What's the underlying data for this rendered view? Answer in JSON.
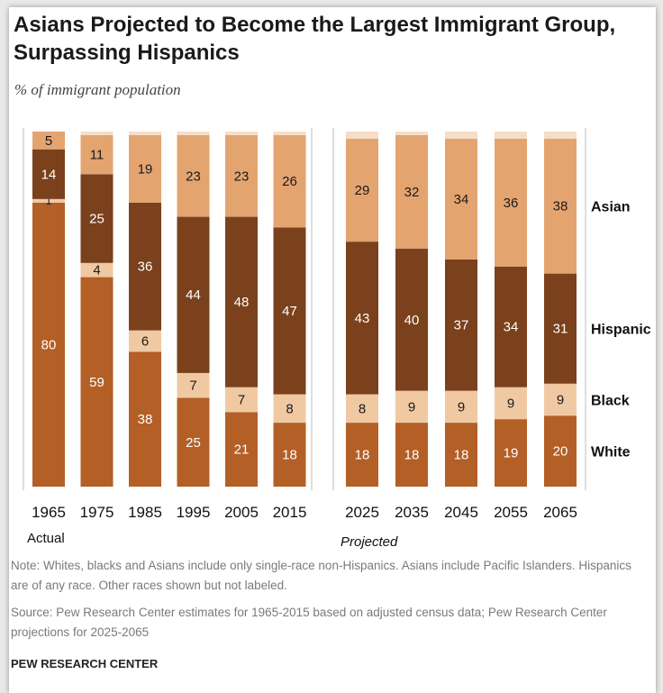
{
  "title": "Asians Projected to Become the Largest Immigrant Group, Surpassing Hispanics",
  "subtitle": "% of immigrant population",
  "note": "Note: Whites, blacks and Asians include only single-race non-Hispanics. Asians include Pacific Islanders. Hispanics are of any race. Other races shown but not labeled.",
  "source": "Source: Pew Research Center estimates for 1965-2015 based on adjusted census data; Pew Research Center projections for 2025-2065",
  "org": "PEW RESEARCH CENTER",
  "colors": {
    "White": "#b35f26",
    "Black": "#f0c9a3",
    "Hispanic": "#7a411c",
    "Asian": "#e4a470",
    "Other": "#f6ddc8"
  },
  "chart_data": {
    "type": "bar",
    "stacked": true,
    "ylim": [
      0,
      100
    ],
    "groups": [
      {
        "label": "Actual",
        "categories": [
          "1965",
          "1975",
          "1985",
          "1995",
          "2005",
          "2015"
        ]
      },
      {
        "label": "Projected",
        "categories": [
          "2025",
          "2035",
          "2045",
          "2055",
          "2065"
        ]
      }
    ],
    "categories": [
      "1965",
      "1975",
      "1985",
      "1995",
      "2005",
      "2015",
      "2025",
      "2035",
      "2045",
      "2055",
      "2065"
    ],
    "series": [
      {
        "name": "White",
        "values": [
          80,
          59,
          38,
          25,
          21,
          18,
          18,
          18,
          18,
          19,
          20
        ]
      },
      {
        "name": "Black",
        "values": [
          1,
          4,
          6,
          7,
          7,
          8,
          8,
          9,
          9,
          9,
          9
        ]
      },
      {
        "name": "Hispanic",
        "values": [
          14,
          25,
          36,
          44,
          48,
          47,
          43,
          40,
          37,
          34,
          31
        ]
      },
      {
        "name": "Asian",
        "values": [
          5,
          11,
          19,
          23,
          23,
          26,
          29,
          32,
          34,
          36,
          38
        ]
      }
    ],
    "legend_position": "right"
  }
}
